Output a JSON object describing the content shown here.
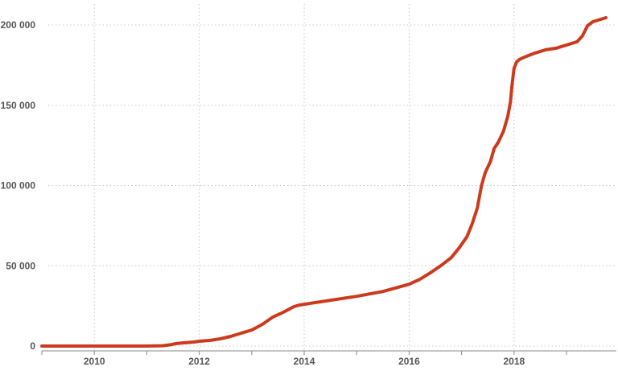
{
  "chart_data": {
    "type": "line",
    "title": "",
    "xlabel": "",
    "ylabel": "",
    "xlim": [
      2009.0,
      2019.95
    ],
    "ylim": [
      0,
      210000
    ],
    "x_ticks": [
      2010,
      2012,
      2014,
      2016,
      2018
    ],
    "x_tick_labels": [
      "2010",
      "2012",
      "2014",
      "2016",
      "2018"
    ],
    "x_minor_ticks": [
      2009,
      2010,
      2011,
      2012,
      2013,
      2014,
      2015,
      2016,
      2017,
      2018,
      2019
    ],
    "y_ticks": [
      0,
      50000,
      100000,
      150000,
      200000
    ],
    "y_tick_labels": [
      "0",
      "50 000",
      "100 000",
      "150 000",
      "200 000"
    ],
    "grid": true,
    "series_color": "#cc3a1e",
    "series": [
      {
        "x": [
          2009.0,
          2010.0,
          2011.0,
          2011.3,
          2011.45,
          2011.55,
          2011.7,
          2011.9,
          2012.0,
          2012.2,
          2012.4,
          2012.6,
          2012.8,
          2013.0,
          2013.2,
          2013.4,
          2013.6,
          2013.8,
          2013.9,
          2014.0,
          2014.5,
          2015.0,
          2015.5,
          2016.0,
          2016.2,
          2016.4,
          2016.6,
          2016.8,
          2016.95,
          2017.1,
          2017.2,
          2017.3,
          2017.38,
          2017.45,
          2017.55,
          2017.62,
          2017.7,
          2017.8,
          2017.88,
          2017.93,
          2017.96,
          2018.0,
          2018.05,
          2018.1,
          2018.2,
          2018.4,
          2018.6,
          2018.8,
          2019.0,
          2019.2,
          2019.3,
          2019.4,
          2019.5,
          2019.75
        ],
        "y": [
          0,
          0,
          0,
          200,
          800,
          1500,
          2000,
          2500,
          3000,
          3500,
          4500,
          6000,
          8000,
          10000,
          13500,
          18000,
          21000,
          24500,
          25500,
          26000,
          28500,
          31000,
          34000,
          38500,
          41500,
          45500,
          50000,
          55000,
          61000,
          68000,
          76000,
          86000,
          100000,
          108000,
          115000,
          123000,
          127000,
          134000,
          143000,
          152000,
          162000,
          173000,
          177000,
          178500,
          180000,
          182500,
          184500,
          185500,
          187500,
          189500,
          193000,
          199500,
          202000,
          204500
        ]
      }
    ]
  }
}
